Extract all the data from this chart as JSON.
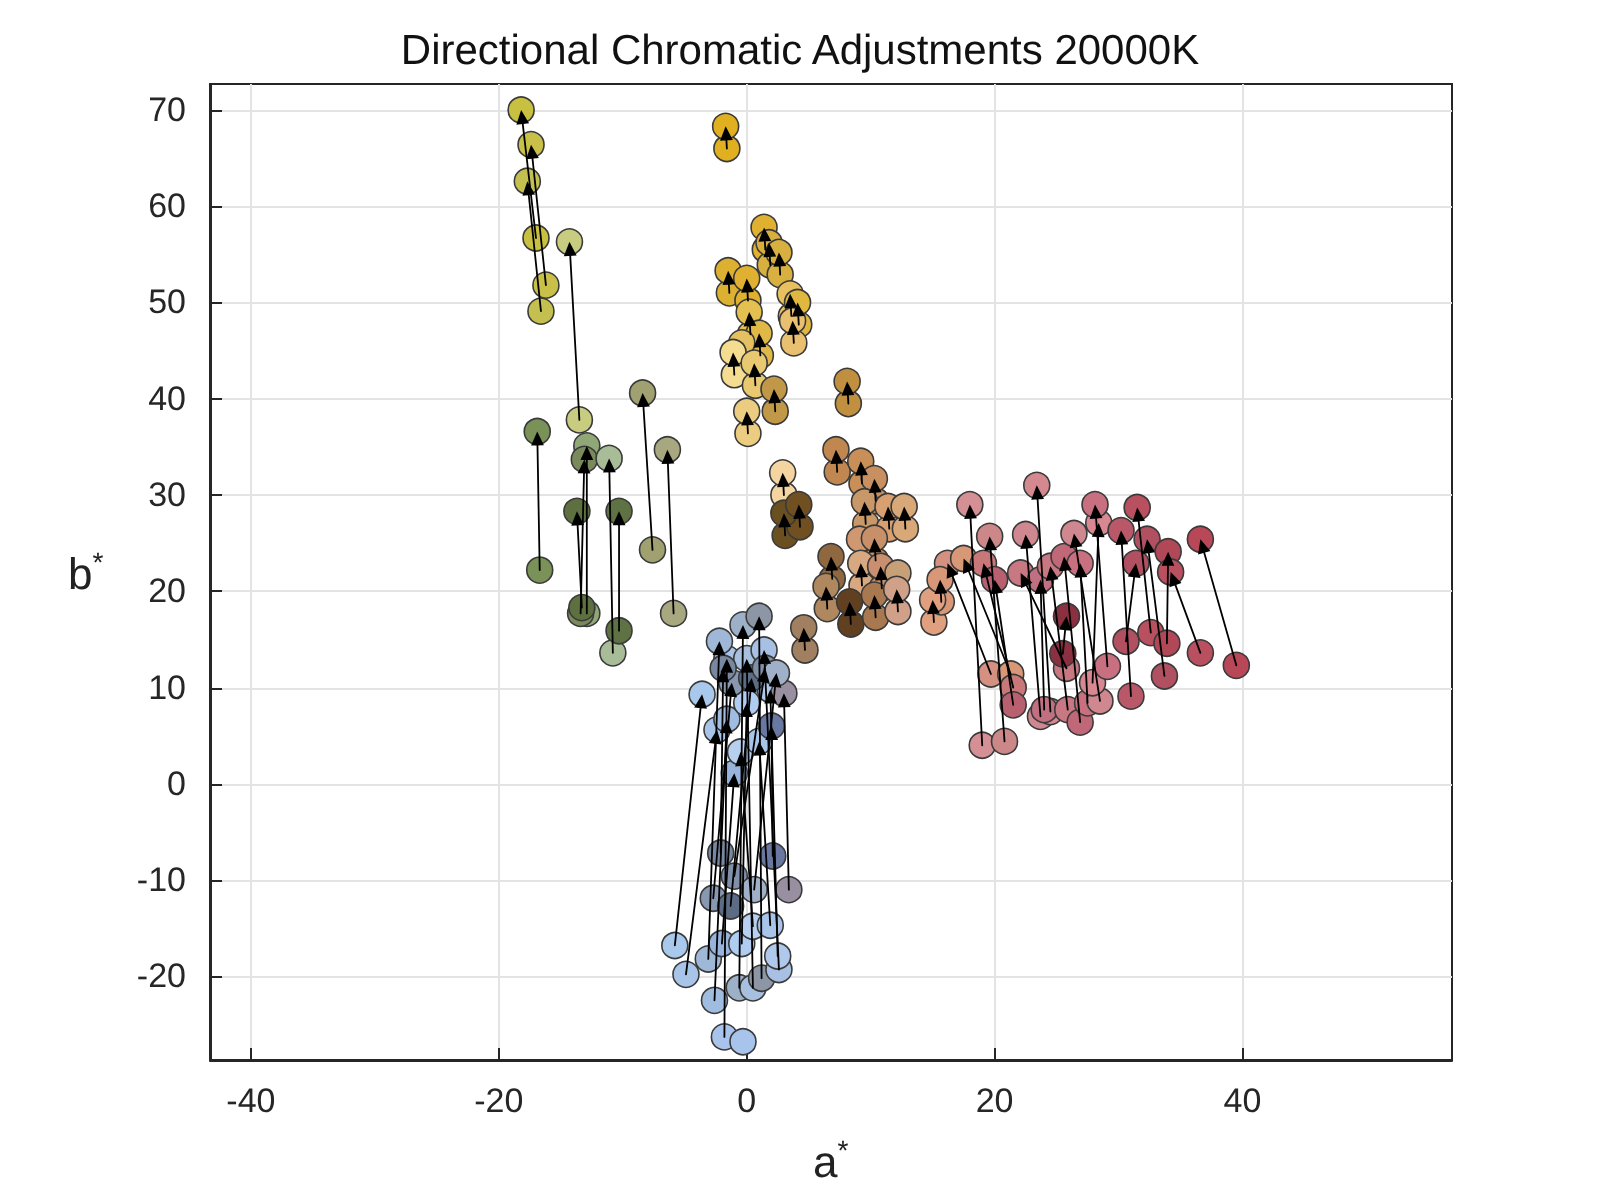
{
  "chart_data": {
    "type": "scatter",
    "title": "Directional Chromatic Adjustments 20000K",
    "xlabel": "a$^{*}$",
    "ylabel": "b$^{*}$",
    "xlim": [
      -43.3,
      56.9
    ],
    "ylim": [
      -28.7,
      72.7
    ],
    "xticks": [
      -40,
      -20,
      0,
      20,
      40
    ],
    "yticks": [
      -20,
      -10,
      0,
      10,
      20,
      30,
      40,
      50,
      60,
      70
    ],
    "grid": true,
    "marker": "circle",
    "series": [
      {
        "x": [
          -16.6,
          -16.2,
          -17,
          -13.5,
          -16.7,
          -12.9,
          -13.4,
          -10.8,
          -13.3,
          -10.3,
          -7.6,
          -5.9,
          -1.6,
          1.5,
          1.9,
          2.7,
          -1.4,
          0.1,
          0.3,
          3.6,
          4.2,
          3.8,
          1.1,
          null,
          -1,
          0.7,
          2.3,
          0.1,
          8.2,
          7.3,
          9.3,
          10.4,
          9.6,
          11.5,
          12.8,
          3,
          3.1,
          4.3,
          null,
          10.4,
          9.3,
          10.9,
          null,
          6.9,
          6.5,
          8.4,
          10.4,
          12.2,
          4.7,
          19,
          20.8,
          19.7,
          21.3,
          21.5,
          21.5,
          23.7,
          24.5,
          25.8,
          24,
          25.9,
          26.9,
          27.5,
          28.5,
          27.9,
          29.1,
          31,
          30.6,
          32.6,
          33.7,
          33.9,
          39.5,
          36.6,
          25.5,
          15.1,
          15.7,
          -5.8,
          -4.9,
          -2.6,
          -1.8,
          -0.3,
          -3.1,
          -2,
          -0.4,
          -0.6,
          0.5,
          1.2,
          2.6,
          2.5,
          0.5,
          1.9,
          -2.7,
          -1.3,
          3.4,
          -2.1,
          -1,
          0.6,
          2.1
        ],
        "values": [
          49.1,
          51.8,
          56.7,
          37.8,
          22.2,
          17.7,
          17.7,
          13.6,
          18.3,
          15.9,
          24.3,
          17.7,
          66,
          55.5,
          53.9,
          52.9,
          51,
          50.2,
          46.7,
          48.6,
          47.7,
          45.8,
          44.5,
          null,
          42.5,
          41.4,
          38.7,
          36.4,
          39.5,
          32.4,
          31.2,
          29.4,
          27,
          26.5,
          26.5,
          30,
          25.8,
          26.7,
          null,
          23.2,
          20.6,
          20.3,
          null,
          21.3,
          18.2,
          16.6,
          17.3,
          17.9,
          13.9,
          4,
          4.4,
          11.4,
          11.4,
          10,
          8.2,
          7,
          7.5,
          12,
          7.7,
          7.7,
          6.4,
          8.4,
          8.6,
          10.5,
          12.2,
          9.1,
          14.8,
          15.7,
          11.2,
          14.6,
          12.3,
          13.6,
          13.5,
          16.8,
          18.9,
          -16.8,
          -19.8,
          -22.5,
          -26.3,
          -26.8,
          -18.2,
          -16.6,
          -16.6,
          -21.2,
          -21.2,
          -20.2,
          -19.3,
          -17.9,
          -14.8,
          -14.7,
          -11.9,
          -12.7,
          -11,
          -7.2,
          -9.6,
          -11,
          -7.5
        ],
        "colors": [
          "#c4c050",
          "#c8c048",
          "#c8c040",
          "#c8cc80",
          "#7a9258",
          "#90a878",
          "#7a8a5a",
          "#a8bc98",
          "#5e7040",
          "#5e7244",
          "#a0a070",
          "#a8a880",
          "#e0b020",
          "#e0b030",
          "#d8b040",
          "#d8b040",
          "#dcb030",
          "#e0b030",
          "#e4c050",
          "#e8c060",
          "#e0b840",
          "#e8c070",
          "#e0b848",
          "#e4c060",
          "#f4dc90",
          "#e8c870",
          "#c09848",
          "#eccc80",
          "#c09040",
          "#c08850",
          "#c89058",
          "#c89060",
          "#c89868",
          "#d8a070",
          "#d8a878",
          "#f4d4a0",
          "#6a5020",
          "#705020",
          "#d09870",
          "#c89068",
          "#d8a880",
          "#c89070",
          "#c8a078",
          "#906840",
          "#b08860",
          "#604020",
          "#a87850",
          "#d0a088",
          "#a08060",
          "#d49094",
          "#cc8888",
          "#d49080",
          "#d89878",
          "#c87878",
          "#b86070",
          "#d08890",
          "#d48890",
          "#c87880",
          "#c07080",
          "#c87882",
          "#c06878",
          "#c87080",
          "#d08890",
          "#d88890",
          "#c87080",
          "#b85868",
          "#b05060",
          "#b85060",
          "#b05060",
          "#b04858",
          "#b84858",
          "#b85060",
          "#8a3040",
          "#e0a080",
          "#d89878",
          "#a8c8ec",
          "#a8c4e8",
          "#a0bce0",
          "#a8c4ec",
          "#a8c4ec",
          "#a0b8d8",
          "#98b4dc",
          "#b0ccf0",
          "#9cb0c8",
          "#a8c0e0",
          "#8c96a4",
          "#a8c0e4",
          "#b0c8ec",
          "#b8d0f0",
          "#a8c4e8",
          "#8898b0",
          "#5c6c84",
          "#9890a0",
          "#7888a0",
          "#8090a8",
          "#a0b0c8",
          "#6878a0"
        ]
      },
      {
        "x": [
          -17.7,
          -17.4,
          -18.2,
          -14.3,
          -16.9,
          -12.9,
          -13.1,
          -11.1,
          -13.7,
          -10.3,
          -8.4,
          -6.4,
          -1.7,
          1.4,
          1.8,
          2.6,
          -1.5,
          0,
          0.2,
          3.5,
          4.1,
          3.7,
          1,
          -0.4,
          -1.1,
          0.6,
          2.2,
          0,
          8.1,
          7.2,
          9.2,
          10.3,
          9.5,
          11.4,
          12.7,
          2.9,
          3,
          4.2,
          9.1,
          10.3,
          9.2,
          10.8,
          12.2,
          6.8,
          6.4,
          8.3,
          10.3,
          12.1,
          4.6,
          18,
          19.6,
          16.2,
          17.5,
          19.1,
          20,
          22.5,
          23.4,
          22.1,
          23.7,
          24.5,
          25.6,
          26.9,
          26.4,
          28.4,
          28.1,
          30.2,
          31.4,
          31.5,
          32.3,
          34,
          36.6,
          34.2,
          25.8,
          15,
          15.6,
          -3.6,
          -2.4,
          -1.6,
          -1.6,
          null,
          -2.2,
          -1,
          0,
          -0.3,
          0,
          1,
          1.4,
          1.9,
          -0.5,
          1,
          -1.2,
          0.4,
          3,
          -1.9,
          1.5,
          2.4,
          2
        ],
        "values": [
          62.6,
          66.4,
          70,
          56.3,
          36.6,
          35.1,
          33.7,
          33.8,
          28.3,
          28.3,
          40.6,
          34.7,
          68.3,
          57.8,
          56.2,
          55.2,
          53.3,
          52.5,
          49,
          50.9,
          50,
          48.1,
          46.8,
          45.8,
          44.8,
          43.7,
          41,
          38.7,
          41.8,
          34.7,
          33.5,
          31.7,
          29.3,
          28.8,
          28.8,
          32.3,
          28.1,
          29,
          25.4,
          25.5,
          22.9,
          22.6,
          21.9,
          23.6,
          20.5,
          18.9,
          19.6,
          20.2,
          16.2,
          29,
          25.7,
          22.9,
          23.4,
          22.9,
          21.2,
          25.9,
          31,
          21.9,
          21.2,
          22.6,
          23.6,
          22.9,
          26,
          27.1,
          29,
          26.3,
          22.9,
          28.7,
          25.4,
          24.1,
          25.4,
          22,
          17.4,
          19.1,
          21.2,
          9.3,
          5.6,
          6.7,
          13,
          null,
          14.8,
          1.1,
          8.4,
          16.5,
          13,
          17.4,
          13.9,
          9.8,
          3.3,
          4.4,
          10.5,
          11,
          9.4,
          12,
          12,
          11.5,
          6
        ],
        "colors": [
          "#c4c050",
          "#c8c048",
          "#c8c040",
          "#c8cc80",
          "#7a9258",
          "#90a878",
          "#7a8a5a",
          "#a8bc98",
          "#5e7040",
          "#5e7244",
          "#a0a070",
          "#a8a880",
          "#e0b020",
          "#e0b030",
          "#d8b040",
          "#d8b040",
          "#dcb030",
          "#e0b030",
          "#e4c050",
          "#e8c060",
          "#e0b840",
          "#e8c070",
          "#e0b848",
          "#e4c060",
          "#f4dc90",
          "#e8c870",
          "#c09848",
          "#eccc80",
          "#c09040",
          "#c08850",
          "#c89058",
          "#c89060",
          "#c89868",
          "#d8a070",
          "#d8a878",
          "#f4d4a0",
          "#6a5020",
          "#705020",
          "#d09870",
          "#c89068",
          "#d8a880",
          "#c89070",
          "#c8a078",
          "#906840",
          "#b08860",
          "#604020",
          "#a87850",
          "#d0a088",
          "#a08060",
          "#d49094",
          "#cc8888",
          "#d49080",
          "#d89878",
          "#c87878",
          "#b86070",
          "#d08890",
          "#d48890",
          "#c87880",
          "#c07080",
          "#c87882",
          "#c06878",
          "#c87080",
          "#d08890",
          "#d88890",
          "#c87080",
          "#b85868",
          "#b05060",
          "#b85060",
          "#b05060",
          "#b04858",
          "#b84858",
          "#b85060",
          "#8a3040",
          "#e0a080",
          "#d89878",
          "#a8c8ec",
          "#a8c4e8",
          "#a0bce0",
          "#a8c4ec",
          "#a8c4ec",
          "#a0b8d8",
          "#98b4dc",
          "#b0ccf0",
          "#9cb0c8",
          "#a8c0e0",
          "#8c96a4",
          "#a8c0e4",
          "#b0c8ec",
          "#b8d0f0",
          "#a8c4e8",
          "#8898b0",
          "#5c6c84",
          "#9890a0",
          "#7888a0",
          "#8090a8",
          "#a0b0c8",
          "#6878a0"
        ]
      }
    ]
  }
}
